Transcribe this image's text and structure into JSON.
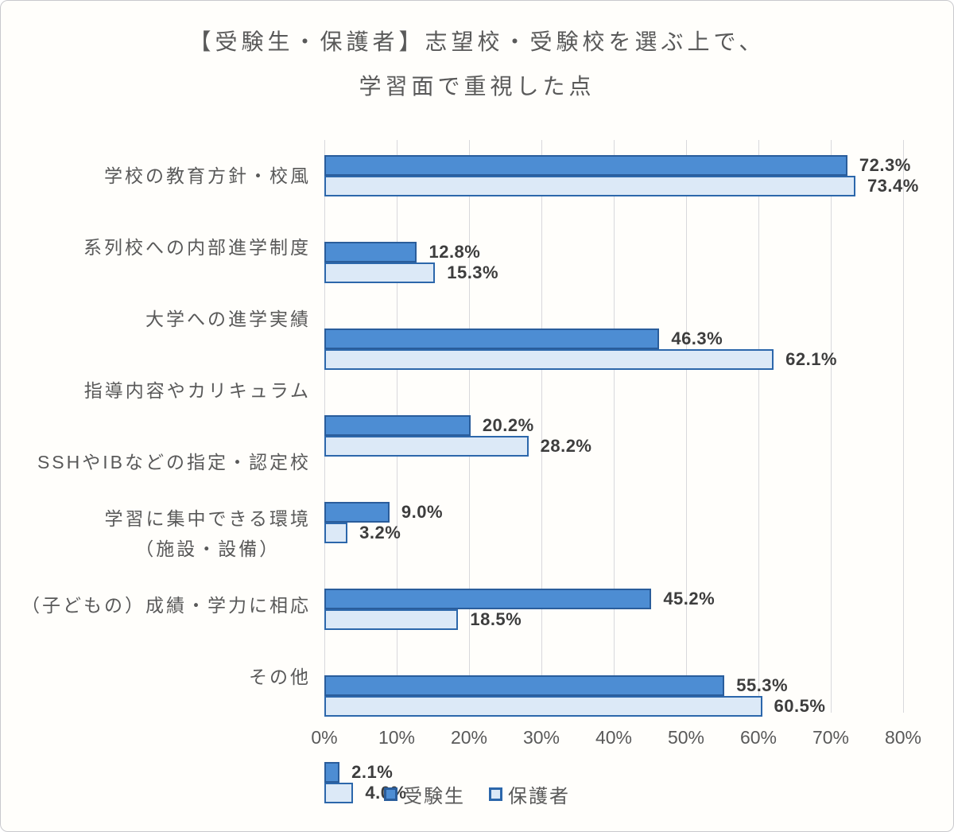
{
  "title": {
    "line1": "【受験生・保護者】志望校・受験校を選ぶ上で、",
    "line2": "学習面で重視した点"
  },
  "chart_data": {
    "type": "bar",
    "orientation": "horizontal",
    "title": "【受験生・保護者】志望校・受験校を選ぶ上で、学習面で重視した点",
    "categories": [
      "学校の教育方針・校風",
      "系列校への内部進学制度",
      "大学への進学実績",
      "指導内容やカリキュラム",
      "SSHやIBなどの指定・認定校",
      "学習に集中できる環境\n（施設・設備）",
      "（子どもの）成績・学力に相応",
      "その他"
    ],
    "series": [
      {
        "name": "受験生",
        "values": [
          72.3,
          12.8,
          46.3,
          20.2,
          9.0,
          45.2,
          55.3,
          2.1
        ],
        "fill_color": "#4d8dd3",
        "border_color": "#2a5d9b"
      },
      {
        "name": "保護者",
        "values": [
          73.4,
          15.3,
          62.1,
          28.2,
          3.2,
          18.5,
          60.5,
          4.0
        ],
        "fill_color": "#dce9f7",
        "border_color": "#2c67ab"
      }
    ],
    "xlim": [
      0,
      80
    ],
    "x_ticks": [
      "0%",
      "10%",
      "20%",
      "30%",
      "40%",
      "50%",
      "60%",
      "70%",
      "80%"
    ],
    "value_suffix": "%",
    "grid": "vertical",
    "gridline_color": "#d8d8dc",
    "legend_position": "bottom",
    "text_color": "#595959",
    "value_label_color": "#3d3d3d"
  }
}
